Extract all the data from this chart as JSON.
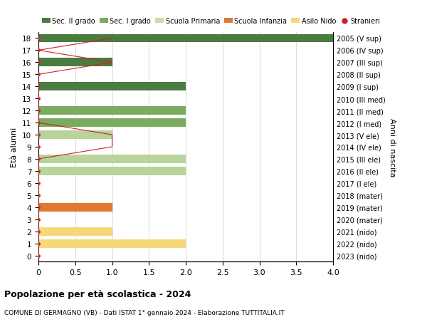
{
  "ages": [
    18,
    17,
    16,
    15,
    14,
    13,
    12,
    11,
    10,
    9,
    8,
    7,
    6,
    5,
    4,
    3,
    2,
    1,
    0
  ],
  "years": [
    "2005 (V sup)",
    "2006 (IV sup)",
    "2007 (III sup)",
    "2008 (II sup)",
    "2009 (I sup)",
    "2010 (III med)",
    "2011 (II med)",
    "2012 (I med)",
    "2013 (V ele)",
    "2014 (IV ele)",
    "2015 (III ele)",
    "2016 (II ele)",
    "2017 (I ele)",
    "2018 (mater)",
    "2019 (mater)",
    "2020 (mater)",
    "2021 (nido)",
    "2022 (nido)",
    "2023 (nido)"
  ],
  "bar_values": [
    4,
    0,
    1,
    0,
    2,
    0,
    2,
    2,
    1,
    0,
    2,
    2,
    0,
    0,
    1,
    0,
    1,
    2,
    0
  ],
  "stranieri_values": [
    1,
    0,
    1,
    0,
    0,
    0,
    0,
    0,
    1,
    1,
    0,
    0,
    0,
    0,
    0,
    0,
    0,
    0,
    0
  ],
  "bar_colors": [
    "#4a7c3f",
    "#4a7c3f",
    "#4a7c3f",
    "#4a7c3f",
    "#4a7c3f",
    "#7aab5e",
    "#7aab5e",
    "#7aab5e",
    "#b8d49a",
    "#b8d49a",
    "#b8d49a",
    "#b8d49a",
    "#b8d49a",
    "#e07a30",
    "#e07a30",
    "#e07a30",
    "#f5d87a",
    "#f5d87a",
    "#f5d87a"
  ],
  "stranieri_color": "#cc2222",
  "title_bold": "Popolazione per età scolastica - 2024",
  "subtitle": "COMUNE DI GERMAGNO (VB) - Dati ISTAT 1° gennaio 2024 - Elaborazione TUTTITALIA.IT",
  "ylabel_left": "Età alunni",
  "ylabel_right": "Anni di nascita",
  "xlim": [
    0,
    4.0
  ],
  "xticks": [
    0,
    0.5,
    1.0,
    1.5,
    2.0,
    2.5,
    3.0,
    3.5,
    4.0
  ],
  "xtick_labels": [
    "0",
    "0.5",
    "1.0",
    "1.5",
    "2.0",
    "2.5",
    "3.0",
    "3.5",
    "4.0"
  ],
  "legend_labels": [
    "Sec. II grado",
    "Sec. I grado",
    "Scuola Primaria",
    "Scuola Infanzia",
    "Asilo Nido",
    "Stranieri"
  ],
  "legend_colors": [
    "#4a7c3f",
    "#7aab5e",
    "#c8ddb0",
    "#e07a30",
    "#f5d87a",
    "#cc2222"
  ],
  "bg_color": "#ffffff",
  "grid_color": "#cccccc",
  "bar_height": 0.7
}
